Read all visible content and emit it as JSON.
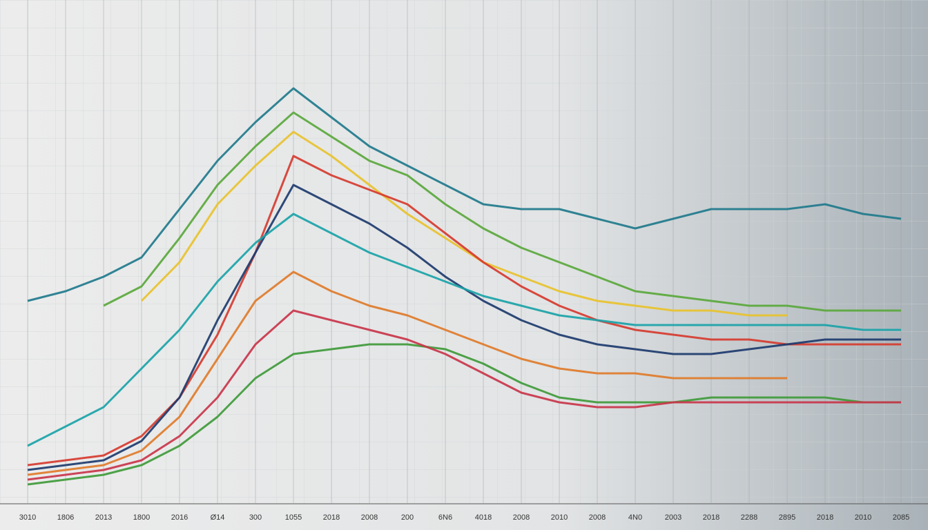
{
  "chart_data": {
    "type": "line",
    "categories": [
      "3010",
      "1806",
      "2013",
      "1800",
      "2016",
      "Ø14",
      "300",
      "1055",
      "2018",
      "2008",
      "200",
      "6N6",
      "4018",
      "2008",
      "2010",
      "2008",
      "4Ν0",
      "2003",
      "2018",
      "2288",
      "2895",
      "2018",
      "2010",
      "2085"
    ],
    "ylim": [
      0,
      100
    ],
    "grid": true,
    "series": [
      {
        "color": "#1f7a8c",
        "values": [
          42,
          44,
          47,
          51,
          61,
          71,
          79,
          86,
          80,
          74,
          70,
          66,
          62,
          61,
          61,
          59,
          57,
          59,
          61,
          61,
          61,
          62,
          60,
          59
        ]
      },
      {
        "color": "#5aa83c",
        "values": [
          null,
          null,
          41,
          45,
          55,
          66,
          74,
          81,
          76,
          71,
          68,
          62,
          57,
          53,
          50,
          47,
          44,
          43,
          42,
          41,
          41,
          40,
          40,
          40
        ]
      },
      {
        "color": "#e8c22c",
        "values": [
          null,
          null,
          null,
          42,
          50,
          62,
          70,
          77,
          72,
          66,
          60,
          55,
          50,
          47,
          44,
          42,
          41,
          40,
          40,
          39,
          39,
          null,
          null,
          null
        ]
      },
      {
        "color": "#d63b2f",
        "values": [
          8,
          9,
          10,
          14,
          22,
          35,
          52,
          72,
          68,
          65,
          62,
          56,
          50,
          45,
          41,
          38,
          36,
          35,
          34,
          34,
          33,
          33,
          33,
          33
        ]
      },
      {
        "color": "#1d3b6e",
        "values": [
          7,
          8,
          9,
          13,
          22,
          38,
          52,
          66,
          62,
          58,
          53,
          47,
          42,
          38,
          35,
          33,
          32,
          31,
          31,
          32,
          33,
          34,
          34,
          34
        ]
      },
      {
        "color": "#e07b2a",
        "values": [
          6,
          7,
          8,
          11,
          18,
          30,
          42,
          48,
          44,
          41,
          39,
          36,
          33,
          30,
          28,
          27,
          27,
          26,
          26,
          26,
          26,
          null,
          null,
          null
        ]
      },
      {
        "color": "#1aa3a8",
        "values": [
          12,
          16,
          20,
          28,
          36,
          46,
          54,
          60,
          56,
          52,
          49,
          46,
          43,
          41,
          39,
          38,
          37,
          37,
          37,
          37,
          37,
          37,
          36,
          36
        ]
      },
      {
        "color": "#3f9a3a",
        "values": [
          4,
          5,
          6,
          8,
          12,
          18,
          26,
          31,
          32,
          33,
          33,
          32,
          29,
          25,
          22,
          21,
          21,
          21,
          22,
          22,
          22,
          22,
          21,
          21
        ]
      },
      {
        "color": "#c9354a",
        "values": [
          5,
          6,
          7,
          9,
          14,
          22,
          33,
          40,
          38,
          36,
          34,
          31,
          27,
          23,
          21,
          20,
          20,
          21,
          21,
          21,
          21,
          21,
          21,
          21
        ]
      }
    ]
  }
}
